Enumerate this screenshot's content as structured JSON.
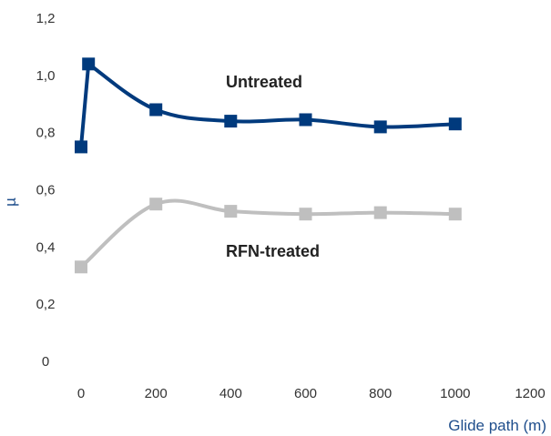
{
  "chart_data": {
    "type": "line",
    "xlabel": "Glide path (m)",
    "ylabel": "µ",
    "xlim": [
      0,
      1200
    ],
    "ylim": [
      0,
      1.2
    ],
    "x_ticks": [
      0,
      200,
      400,
      600,
      800,
      1000,
      1200
    ],
    "y_ticks": [
      0,
      0.2,
      0.4,
      0.6,
      0.8,
      1.0,
      1.2
    ],
    "x_tick_labels": [
      "0",
      "200",
      "400",
      "600",
      "800",
      "1000",
      "1200"
    ],
    "y_tick_labels": [
      "0",
      "0,2",
      "0,4",
      "0,6",
      "0,8",
      "1,0",
      "1,2"
    ],
    "grid": false,
    "series": [
      {
        "name": "Untreated",
        "color": "#003a7d",
        "x": [
          0,
          20,
          200,
          400,
          600,
          800,
          1000
        ],
        "y": [
          0.75,
          1.04,
          0.88,
          0.84,
          0.845,
          0.82,
          0.83
        ]
      },
      {
        "name": "RFN-treated",
        "color": "#bfbfbf",
        "x": [
          0,
          200,
          400,
          600,
          800,
          1000
        ],
        "y": [
          0.33,
          0.55,
          0.525,
          0.515,
          0.52,
          0.515
        ]
      }
    ]
  }
}
